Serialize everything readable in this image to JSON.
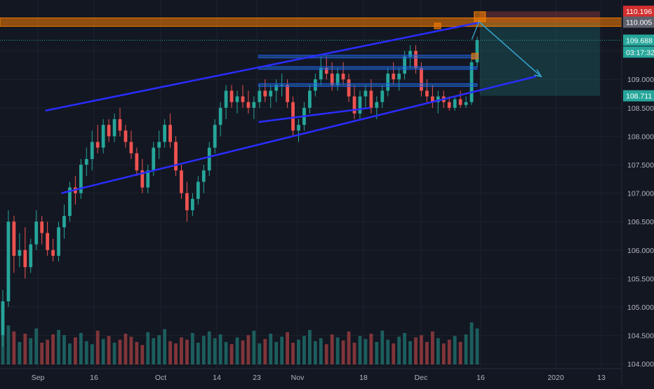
{
  "chart_data": {
    "type": "candlestick",
    "theme": "dark",
    "x_tick_labels": [
      "Sep",
      "16",
      "Oct",
      "14",
      "23",
      "Nov",
      "18",
      "Dec",
      "16",
      "2020",
      "13"
    ],
    "y_tick_labels": [
      "104.000",
      "104.500",
      "105.000",
      "105.500",
      "106.000",
      "106.500",
      "107.000",
      "107.500",
      "108.000",
      "108.500",
      "109.000",
      "109.500",
      "110.000"
    ],
    "ylim": [
      103.9,
      110.35
    ],
    "price_badges": [
      {
        "label": "110.196",
        "role": "stop-loss",
        "color": "#d32f2f"
      },
      {
        "label": "110.005",
        "role": "resistance-level",
        "color": "#5d606b"
      },
      {
        "label": "109.688",
        "role": "last-price",
        "color": "#26a69a"
      },
      {
        "label": "03:17:32",
        "role": "bar-countdown",
        "color": "#26a69a"
      },
      {
        "label": "108.711",
        "role": "take-profit",
        "color": "#26a69a"
      }
    ],
    "levels": {
      "resistance": 110.005,
      "last_price": 109.688,
      "stop_loss": 110.196,
      "target": 108.711
    },
    "channel": {
      "upper": [
        [
          16,
          108.45
        ],
        [
          179,
          110.0
        ]
      ],
      "lower": [
        [
          22,
          107.0
        ],
        [
          200,
          109.05
        ]
      ],
      "inner_support": [
        [
          96,
          108.25
        ],
        [
          138,
          108.5
        ]
      ]
    },
    "horizontal_segments": [
      109.4,
      109.2,
      108.9
    ],
    "projection_arrow": [
      [
        179,
        110.0
      ],
      [
        202,
        109.05
      ]
    ],
    "candles_ohlc": [
      [
        104.5,
        105.3,
        104.3,
        105.1
      ],
      [
        105.1,
        106.7,
        105.0,
        106.5
      ],
      [
        106.5,
        106.6,
        105.6,
        105.9
      ],
      [
        105.9,
        106.3,
        105.7,
        106.0
      ],
      [
        106.0,
        106.4,
        105.5,
        105.7
      ],
      [
        105.7,
        106.2,
        105.6,
        106.1
      ],
      [
        106.1,
        106.7,
        106.0,
        106.5
      ],
      [
        106.5,
        106.6,
        106.1,
        106.3
      ],
      [
        106.3,
        106.5,
        105.9,
        106.0
      ],
      [
        106.0,
        106.2,
        105.8,
        105.9
      ],
      [
        105.9,
        106.5,
        105.8,
        106.4
      ],
      [
        106.4,
        106.8,
        106.2,
        106.6
      ],
      [
        106.6,
        107.2,
        106.5,
        107.1
      ],
      [
        107.1,
        107.3,
        106.8,
        107.0
      ],
      [
        107.0,
        107.6,
        106.9,
        107.5
      ],
      [
        107.5,
        107.8,
        107.3,
        107.6
      ],
      [
        107.6,
        108.1,
        107.4,
        107.9
      ],
      [
        107.9,
        108.2,
        107.7,
        107.8
      ],
      [
        107.8,
        108.3,
        107.7,
        108.2
      ],
      [
        108.2,
        108.3,
        107.9,
        108.0
      ],
      [
        108.0,
        108.4,
        107.9,
        108.3
      ],
      [
        108.3,
        108.5,
        108.0,
        108.1
      ],
      [
        108.1,
        108.2,
        107.8,
        107.9
      ],
      [
        107.9,
        108.1,
        107.6,
        107.7
      ],
      [
        107.7,
        107.8,
        107.3,
        107.4
      ],
      [
        107.4,
        107.6,
        107.0,
        107.1
      ],
      [
        107.1,
        107.5,
        107.0,
        107.4
      ],
      [
        107.4,
        107.9,
        107.3,
        107.8
      ],
      [
        107.8,
        108.1,
        107.6,
        107.9
      ],
      [
        107.9,
        108.3,
        107.8,
        108.2
      ],
      [
        108.2,
        108.4,
        107.8,
        107.9
      ],
      [
        107.9,
        108.0,
        107.3,
        107.4
      ],
      [
        107.4,
        107.5,
        106.9,
        107.0
      ],
      [
        107.0,
        107.2,
        106.5,
        106.7
      ],
      [
        106.7,
        107.0,
        106.6,
        106.9
      ],
      [
        106.9,
        107.3,
        106.8,
        107.2
      ],
      [
        107.2,
        107.5,
        107.0,
        107.4
      ],
      [
        107.4,
        107.9,
        107.3,
        107.8
      ],
      [
        107.8,
        108.3,
        107.7,
        108.2
      ],
      [
        108.2,
        108.6,
        108.0,
        108.5
      ],
      [
        108.5,
        108.9,
        108.3,
        108.8
      ],
      [
        108.8,
        108.9,
        108.5,
        108.6
      ],
      [
        108.6,
        108.8,
        108.4,
        108.7
      ],
      [
        108.7,
        108.9,
        108.5,
        108.6
      ],
      [
        108.6,
        108.8,
        108.4,
        108.5
      ],
      [
        108.5,
        108.7,
        108.3,
        108.6
      ],
      [
        108.6,
        108.9,
        108.5,
        108.8
      ],
      [
        108.8,
        109.0,
        108.6,
        108.7
      ],
      [
        108.7,
        108.9,
        108.5,
        108.8
      ],
      [
        108.8,
        109.0,
        108.6,
        108.9
      ],
      [
        108.9,
        109.1,
        108.7,
        108.9
      ],
      [
        108.9,
        109.0,
        108.5,
        108.6
      ],
      [
        108.6,
        108.7,
        108.0,
        108.1
      ],
      [
        108.1,
        108.3,
        107.9,
        108.2
      ],
      [
        108.2,
        108.6,
        108.1,
        108.5
      ],
      [
        108.5,
        108.9,
        108.4,
        108.8
      ],
      [
        108.8,
        109.1,
        108.7,
        109.0
      ],
      [
        109.0,
        109.4,
        108.9,
        109.2
      ],
      [
        109.2,
        109.4,
        109.0,
        109.1
      ],
      [
        109.1,
        109.3,
        108.8,
        108.9
      ],
      [
        108.9,
        109.2,
        108.8,
        109.1
      ],
      [
        109.1,
        109.3,
        108.9,
        109.0
      ],
      [
        109.0,
        109.1,
        108.6,
        108.7
      ],
      [
        108.7,
        108.9,
        108.3,
        108.4
      ],
      [
        108.4,
        108.8,
        108.3,
        108.7
      ],
      [
        108.7,
        108.9,
        108.5,
        108.8
      ],
      [
        108.8,
        109.0,
        108.4,
        108.5
      ],
      [
        108.5,
        108.7,
        108.3,
        108.6
      ],
      [
        108.6,
        108.9,
        108.5,
        108.8
      ],
      [
        108.8,
        109.2,
        108.7,
        109.1
      ],
      [
        109.1,
        109.3,
        108.9,
        109.0
      ],
      [
        109.0,
        109.2,
        108.8,
        109.1
      ],
      [
        109.1,
        109.5,
        109.0,
        109.4
      ],
      [
        109.4,
        109.6,
        109.2,
        109.5
      ],
      [
        109.5,
        109.6,
        109.1,
        109.2
      ],
      [
        109.2,
        109.3,
        108.7,
        108.8
      ],
      [
        108.8,
        109.0,
        108.6,
        108.7
      ],
      [
        108.7,
        108.9,
        108.5,
        108.6
      ],
      [
        108.6,
        108.8,
        108.4,
        108.7
      ],
      [
        108.7,
        108.8,
        108.5,
        108.6
      ],
      [
        108.6,
        108.7,
        108.45,
        108.5
      ],
      [
        108.5,
        108.7,
        108.45,
        108.65
      ],
      [
        108.65,
        108.8,
        108.5,
        108.55
      ],
      [
        108.55,
        108.7,
        108.5,
        108.6
      ],
      [
        108.6,
        109.4,
        108.55,
        109.3
      ],
      [
        109.3,
        109.75,
        109.2,
        109.69
      ]
    ],
    "volume": [
      38,
      52,
      44,
      30,
      41,
      35,
      48,
      29,
      33,
      40,
      46,
      39,
      28,
      36,
      42,
      31,
      27,
      45,
      34,
      38,
      29,
      33,
      41,
      37,
      30,
      26,
      43,
      35,
      39,
      47,
      31,
      28,
      36,
      33,
      42,
      29,
      38,
      44,
      35,
      40,
      30,
      27,
      36,
      32,
      39,
      45,
      28,
      34,
      41,
      30,
      37,
      43,
      29,
      33,
      38,
      46,
      31,
      35,
      27,
      40,
      36,
      32,
      44,
      29,
      38,
      34,
      41,
      30,
      45,
      33,
      28,
      37,
      42,
      31,
      36,
      39,
      30,
      44,
      35,
      28,
      33,
      38,
      30,
      40,
      56,
      48
    ]
  }
}
